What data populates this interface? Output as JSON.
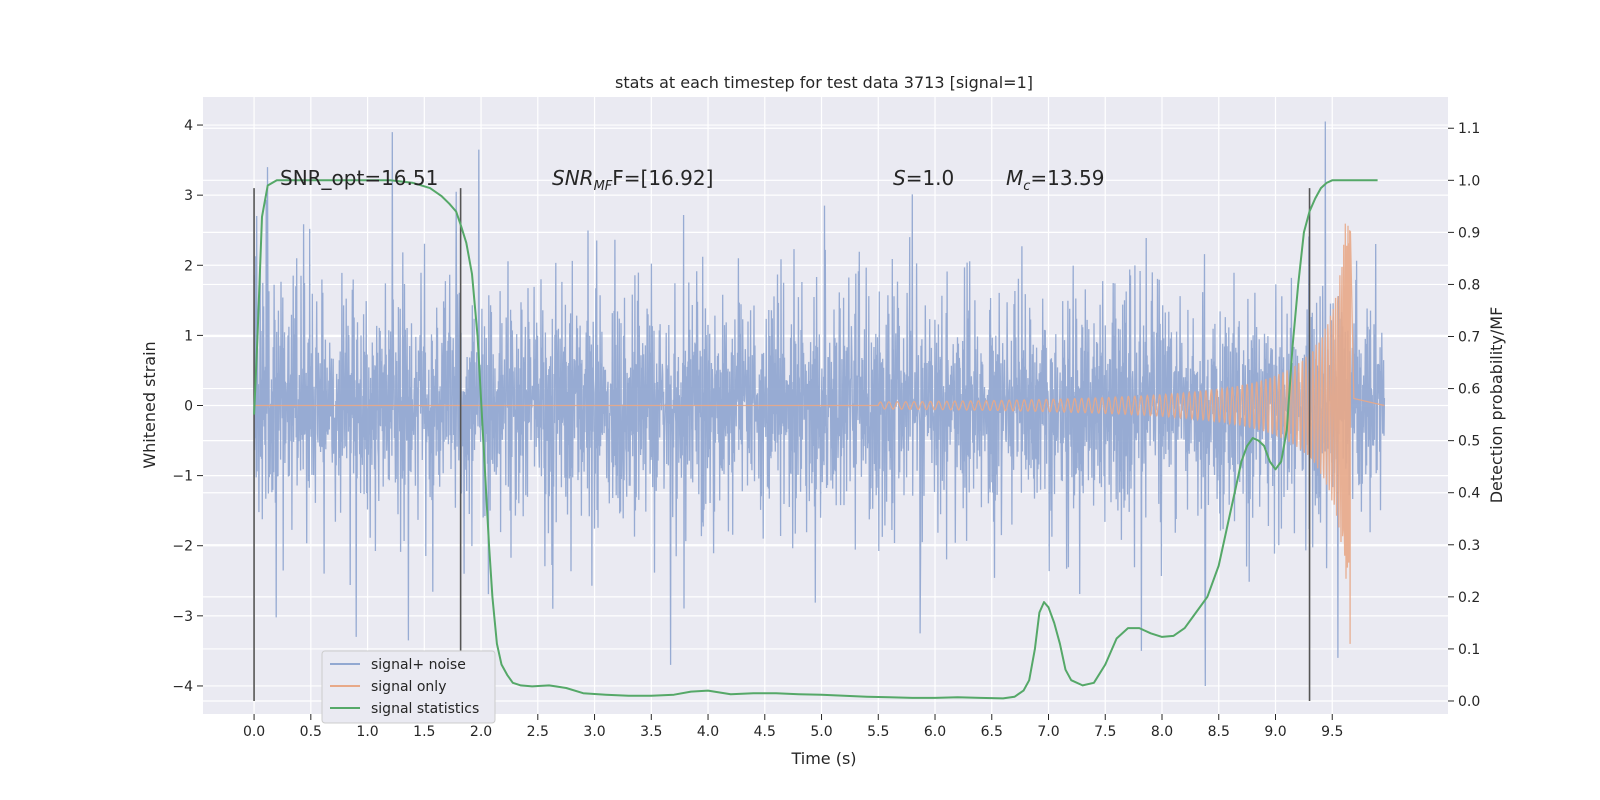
{
  "chart_data": {
    "type": "line",
    "title": "stats at each timestep for test data 3713 [signal=1]",
    "xlabel": "Time (s)",
    "ylabel": "Whitened strain",
    "y2label": "Detection probability/MF",
    "xlim": [
      -0.45,
      10.52
    ],
    "ylim": [
      -4.4,
      4.4
    ],
    "y2lim": [
      -0.025,
      1.16
    ],
    "x_ticks": [
      "0.0",
      "0.5",
      "1.0",
      "1.5",
      "2.0",
      "2.5",
      "3.0",
      "3.5",
      "4.0",
      "4.5",
      "5.0",
      "5.5",
      "6.0",
      "6.5",
      "7.0",
      "7.5",
      "8.0",
      "8.5",
      "9.0",
      "9.5"
    ],
    "y_ticks": [
      "4",
      "3",
      "2",
      "1",
      "0",
      "−1",
      "−2",
      "−3",
      "−4"
    ],
    "y2_ticks": [
      "1.1",
      "1.0",
      "0.9",
      "0.8",
      "0.7",
      "0.6",
      "0.5",
      "0.4",
      "0.3",
      "0.2",
      "0.1",
      "0.0"
    ],
    "grid": true,
    "legend_position": "lower-left",
    "legend": [
      {
        "name": "signal+ noise",
        "color": "#92a8d1"
      },
      {
        "name": "signal only",
        "color": "#e8a988"
      },
      {
        "name": "signal statistics",
        "color": "#55a868"
      }
    ],
    "annotations": {
      "snr_opt": "SNR_opt=16.51",
      "snr_mf_base": "SNR",
      "snr_mf_sub": "MF",
      "snr_mf_rest": "F=[16.92]",
      "s_base": "S",
      "s_rest": "=1.0",
      "mc_base": "M",
      "mc_sub": "c",
      "mc_rest": "=13.59"
    },
    "vlines_x": [
      0.0,
      1.82,
      9.3
    ],
    "noise": {
      "x_start": 0.0,
      "x_end": 9.96,
      "spikes": [
        {
          "x": 0.12,
          "y": 3.4
        },
        {
          "x": 0.9,
          "y": -3.3
        },
        {
          "x": 1.22,
          "y": 3.9
        },
        {
          "x": 1.36,
          "y": -3.35
        },
        {
          "x": 1.78,
          "y": 3.05
        },
        {
          "x": 1.98,
          "y": 3.65
        },
        {
          "x": 3.67,
          "y": -3.7
        },
        {
          "x": 5.87,
          "y": -3.25
        },
        {
          "x": 7.82,
          "y": -3.5
        },
        {
          "x": 8.38,
          "y": -4.0
        },
        {
          "x": 9.44,
          "y": 4.05
        },
        {
          "x": 9.55,
          "y": -3.6
        }
      ]
    },
    "signal_only": {
      "start_x": 5.5,
      "peak_x": 9.66,
      "peak_pos": 2.5,
      "peak_neg": -3.4
    },
    "statistics": {
      "x": [
        0.0,
        0.03,
        0.07,
        0.12,
        0.2,
        0.3,
        0.5,
        0.8,
        1.0,
        1.2,
        1.4,
        1.55,
        1.65,
        1.72,
        1.78,
        1.82,
        1.87,
        1.92,
        1.97,
        2.02,
        2.07,
        2.1,
        2.14,
        2.18,
        2.23,
        2.28,
        2.35,
        2.45,
        2.6,
        2.75,
        2.9,
        3.1,
        3.3,
        3.5,
        3.7,
        3.85,
        4.0,
        4.2,
        4.4,
        4.6,
        4.8,
        5.0,
        5.2,
        5.4,
        5.6,
        5.8,
        6.0,
        6.2,
        6.4,
        6.6,
        6.7,
        6.78,
        6.83,
        6.88,
        6.92,
        6.96,
        7.0,
        7.05,
        7.1,
        7.15,
        7.2,
        7.3,
        7.4,
        7.5,
        7.6,
        7.7,
        7.8,
        7.9,
        8.0,
        8.1,
        8.2,
        8.3,
        8.4,
        8.5,
        8.55,
        8.6,
        8.65,
        8.7,
        8.75,
        8.8,
        8.85,
        8.9,
        8.95,
        9.0,
        9.05,
        9.1,
        9.15,
        9.2,
        9.25,
        9.3,
        9.35,
        9.4,
        9.45,
        9.5,
        9.55,
        9.6,
        9.7,
        9.8,
        9.9
      ],
      "y": [
        0.55,
        0.7,
        0.93,
        0.99,
        1.0,
        1.0,
        1.0,
        1.0,
        1.0,
        1.0,
        0.995,
        0.985,
        0.97,
        0.955,
        0.94,
        0.915,
        0.88,
        0.82,
        0.7,
        0.5,
        0.3,
        0.2,
        0.11,
        0.07,
        0.05,
        0.035,
        0.03,
        0.028,
        0.03,
        0.025,
        0.015,
        0.012,
        0.01,
        0.01,
        0.012,
        0.018,
        0.02,
        0.013,
        0.015,
        0.015,
        0.013,
        0.012,
        0.01,
        0.008,
        0.007,
        0.006,
        0.006,
        0.007,
        0.006,
        0.005,
        0.008,
        0.02,
        0.04,
        0.1,
        0.17,
        0.19,
        0.18,
        0.15,
        0.11,
        0.06,
        0.04,
        0.03,
        0.035,
        0.07,
        0.12,
        0.14,
        0.14,
        0.13,
        0.123,
        0.125,
        0.14,
        0.17,
        0.2,
        0.26,
        0.31,
        0.36,
        0.41,
        0.46,
        0.49,
        0.505,
        0.5,
        0.49,
        0.46,
        0.445,
        0.46,
        0.52,
        0.68,
        0.8,
        0.9,
        0.94,
        0.965,
        0.985,
        0.995,
        1.0,
        1.0,
        1.0,
        1.0,
        1.0,
        1.0
      ]
    }
  }
}
